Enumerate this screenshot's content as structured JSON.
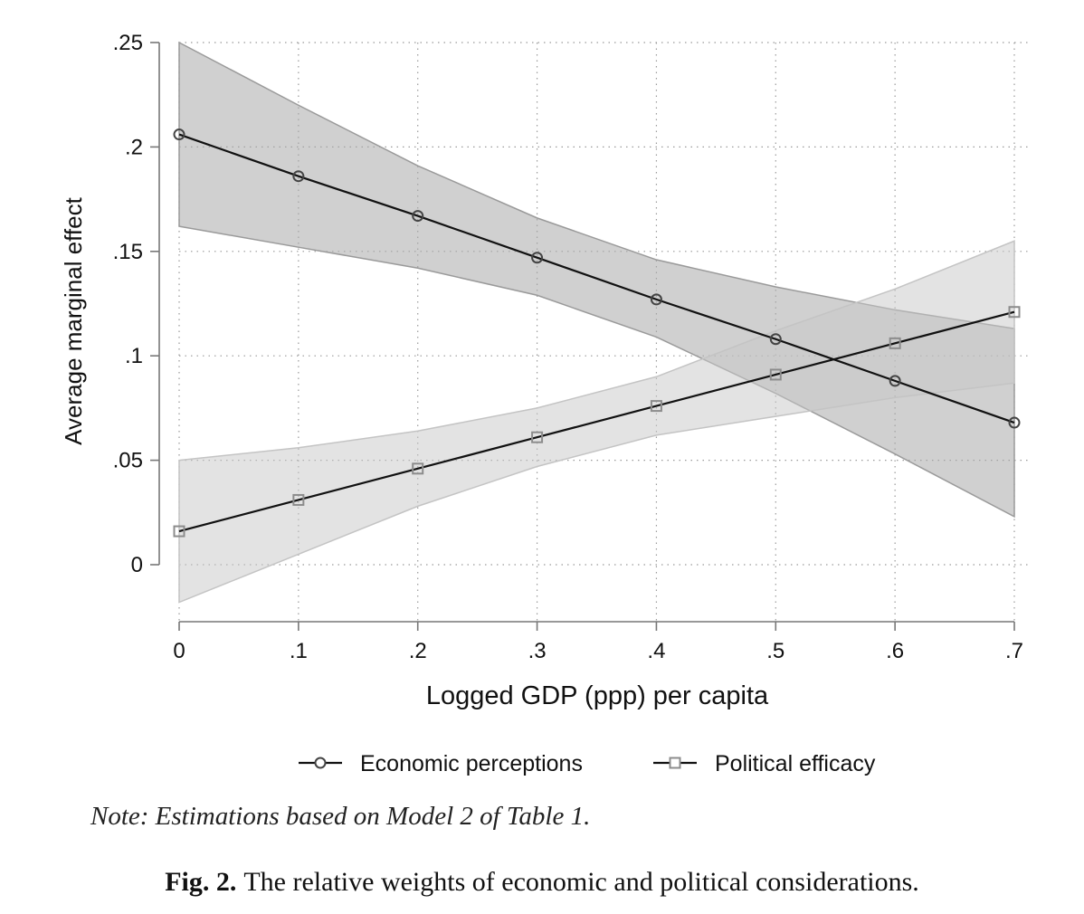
{
  "chart_data": {
    "type": "line",
    "title": "",
    "xlabel": "Logged GDP (ppp) per capita",
    "ylabel": "Average marginal effect",
    "x": [
      0,
      0.1,
      0.2,
      0.3,
      0.4,
      0.5,
      0.6,
      0.7
    ],
    "xticks": [
      {
        "value": 0,
        "label": "0"
      },
      {
        "value": 0.1,
        "label": ".1"
      },
      {
        "value": 0.2,
        "label": ".2"
      },
      {
        "value": 0.3,
        "label": ".3"
      },
      {
        "value": 0.4,
        "label": ".4"
      },
      {
        "value": 0.5,
        "label": ".5"
      },
      {
        "value": 0.6,
        "label": ".6"
      },
      {
        "value": 0.7,
        "label": ".7"
      }
    ],
    "yticks": [
      {
        "value": 0,
        "label": "0"
      },
      {
        "value": 0.05,
        "label": ".05"
      },
      {
        "value": 0.1,
        "label": ".1"
      },
      {
        "value": 0.15,
        "label": ".15"
      },
      {
        "value": 0.2,
        "label": ".2"
      },
      {
        "value": 0.25,
        "label": ".25"
      }
    ],
    "xlim": [
      0,
      0.7
    ],
    "ylim": [
      -0.03,
      0.25
    ],
    "grid": true,
    "legend_position": "bottom",
    "series": [
      {
        "name": "Economic perceptions",
        "marker": "circle",
        "values": [
          0.206,
          0.186,
          0.167,
          0.147,
          0.127,
          0.108,
          0.088,
          0.068
        ],
        "ci_lower": [
          0.162,
          0.152,
          0.142,
          0.129,
          0.109,
          0.082,
          0.053,
          0.023
        ],
        "ci_upper": [
          0.25,
          0.22,
          0.191,
          0.166,
          0.146,
          0.133,
          0.122,
          0.113
        ],
        "band_color": "#a9a9a9",
        "line_color": "#111111",
        "marker_color": "#444444"
      },
      {
        "name": "Political efficacy",
        "marker": "square",
        "values": [
          0.016,
          0.031,
          0.046,
          0.061,
          0.076,
          0.091,
          0.106,
          0.121
        ],
        "ci_lower": [
          -0.018,
          0.005,
          0.028,
          0.047,
          0.062,
          0.071,
          0.08,
          0.087
        ],
        "ci_upper": [
          0.05,
          0.056,
          0.064,
          0.075,
          0.09,
          0.112,
          0.132,
          0.155
        ],
        "band_color": "#c8c8c8",
        "line_color": "#111111",
        "marker_color": "#8c8c8c"
      }
    ]
  },
  "note": "Note: Estimations based on Model 2 of Table 1.",
  "caption": {
    "label": "Fig. 2.",
    "text": "The relative weights of economic and political considerations."
  }
}
